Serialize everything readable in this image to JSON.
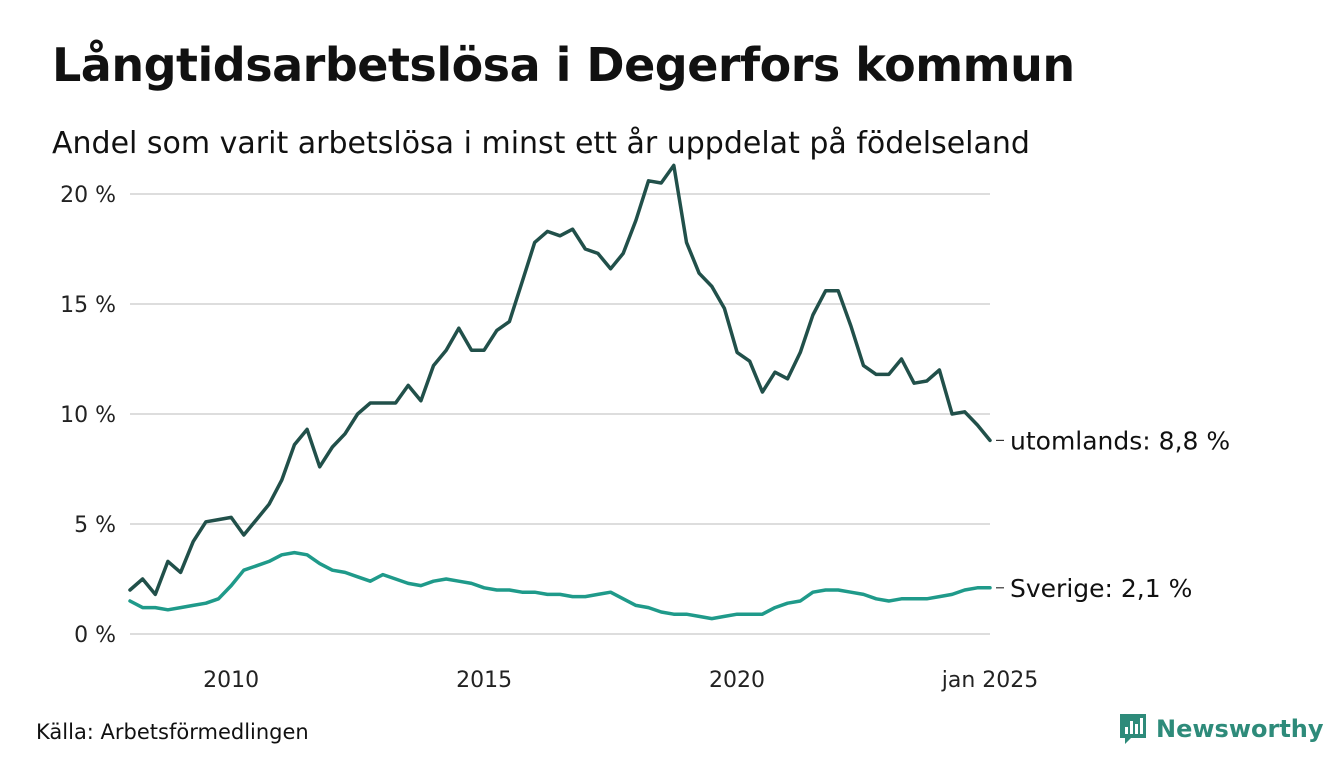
{
  "title": "Långtidsarbetslösa i Degerfors kommun",
  "subtitle": "Andel som varit arbetslösa i minst ett år uppdelat på födelseland",
  "source": "Källa: Arbetsförmedlingen",
  "brand": "Newsworthy",
  "colors": {
    "utomlands": "#21504a",
    "sverige": "#1f9a8a",
    "grid": "#dddddd",
    "brand": "#2e8b7a"
  },
  "chart_data": {
    "type": "line",
    "title": "Långtidsarbetslösa i Degerfors kommun",
    "subtitle": "Andel som varit arbetslösa i minst ett år uppdelat på födelseland",
    "xlabel": "",
    "ylabel": "",
    "xlim": [
      "2008-01",
      "2025-01"
    ],
    "ylim": [
      0,
      22
    ],
    "y_ticks": [
      0,
      5,
      10,
      15,
      20
    ],
    "y_tick_labels": [
      "0 %",
      "5 %",
      "10 %",
      "15 %",
      "20 %"
    ],
    "x_ticks": [
      "2010-01",
      "2015-01",
      "2020-01",
      "2025-01"
    ],
    "x_tick_labels": [
      "2010",
      "2015",
      "2020",
      "jan 2025"
    ],
    "grid": true,
    "series": [
      {
        "name": "utomlands",
        "end_label": "utomlands: 8,8 %",
        "points": [
          [
            "2008-01",
            2.0
          ],
          [
            "2008-04",
            2.5
          ],
          [
            "2008-07",
            1.8
          ],
          [
            "2008-10",
            3.3
          ],
          [
            "2009-01",
            2.8
          ],
          [
            "2009-04",
            4.2
          ],
          [
            "2009-07",
            5.1
          ],
          [
            "2009-10",
            5.2
          ],
          [
            "2010-01",
            5.3
          ],
          [
            "2010-04",
            4.5
          ],
          [
            "2010-07",
            5.2
          ],
          [
            "2010-10",
            5.9
          ],
          [
            "2011-01",
            7.0
          ],
          [
            "2011-04",
            8.6
          ],
          [
            "2011-07",
            9.3
          ],
          [
            "2011-10",
            7.6
          ],
          [
            "2012-01",
            8.5
          ],
          [
            "2012-04",
            9.1
          ],
          [
            "2012-07",
            10.0
          ],
          [
            "2012-10",
            10.5
          ],
          [
            "2013-01",
            10.5
          ],
          [
            "2013-04",
            10.5
          ],
          [
            "2013-07",
            11.3
          ],
          [
            "2013-10",
            10.6
          ],
          [
            "2014-01",
            12.2
          ],
          [
            "2014-04",
            12.9
          ],
          [
            "2014-07",
            13.9
          ],
          [
            "2014-10",
            12.9
          ],
          [
            "2015-01",
            12.9
          ],
          [
            "2015-04",
            13.8
          ],
          [
            "2015-07",
            14.2
          ],
          [
            "2015-10",
            16.0
          ],
          [
            "2016-01",
            17.8
          ],
          [
            "2016-04",
            18.3
          ],
          [
            "2016-07",
            18.1
          ],
          [
            "2016-10",
            18.4
          ],
          [
            "2017-01",
            17.5
          ],
          [
            "2017-04",
            17.3
          ],
          [
            "2017-07",
            16.6
          ],
          [
            "2017-10",
            17.3
          ],
          [
            "2018-01",
            18.8
          ],
          [
            "2018-04",
            20.6
          ],
          [
            "2018-07",
            20.5
          ],
          [
            "2018-10",
            21.3
          ],
          [
            "2019-01",
            17.8
          ],
          [
            "2019-04",
            16.4
          ],
          [
            "2019-07",
            15.8
          ],
          [
            "2019-10",
            14.8
          ],
          [
            "2020-01",
            12.8
          ],
          [
            "2020-04",
            12.4
          ],
          [
            "2020-07",
            11.0
          ],
          [
            "2020-10",
            11.9
          ],
          [
            "2021-01",
            11.6
          ],
          [
            "2021-04",
            12.8
          ],
          [
            "2021-07",
            14.5
          ],
          [
            "2021-10",
            15.6
          ],
          [
            "2022-01",
            15.6
          ],
          [
            "2022-04",
            14.0
          ],
          [
            "2022-07",
            12.2
          ],
          [
            "2022-10",
            11.8
          ],
          [
            "2023-01",
            11.8
          ],
          [
            "2023-04",
            12.5
          ],
          [
            "2023-07",
            11.4
          ],
          [
            "2023-10",
            11.5
          ],
          [
            "2024-01",
            12.0
          ],
          [
            "2024-04",
            10.0
          ],
          [
            "2024-07",
            10.1
          ],
          [
            "2024-10",
            9.5
          ],
          [
            "2025-01",
            8.8
          ]
        ]
      },
      {
        "name": "Sverige",
        "end_label": "Sverige: 2,1 %",
        "points": [
          [
            "2008-01",
            1.5
          ],
          [
            "2008-04",
            1.2
          ],
          [
            "2008-07",
            1.2
          ],
          [
            "2008-10",
            1.1
          ],
          [
            "2009-01",
            1.2
          ],
          [
            "2009-04",
            1.3
          ],
          [
            "2009-07",
            1.4
          ],
          [
            "2009-10",
            1.6
          ],
          [
            "2010-01",
            2.2
          ],
          [
            "2010-04",
            2.9
          ],
          [
            "2010-07",
            3.1
          ],
          [
            "2010-10",
            3.3
          ],
          [
            "2011-01",
            3.6
          ],
          [
            "2011-04",
            3.7
          ],
          [
            "2011-07",
            3.6
          ],
          [
            "2011-10",
            3.2
          ],
          [
            "2012-01",
            2.9
          ],
          [
            "2012-04",
            2.8
          ],
          [
            "2012-07",
            2.6
          ],
          [
            "2012-10",
            2.4
          ],
          [
            "2013-01",
            2.7
          ],
          [
            "2013-04",
            2.5
          ],
          [
            "2013-07",
            2.3
          ],
          [
            "2013-10",
            2.2
          ],
          [
            "2014-01",
            2.4
          ],
          [
            "2014-04",
            2.5
          ],
          [
            "2014-07",
            2.4
          ],
          [
            "2014-10",
            2.3
          ],
          [
            "2015-01",
            2.1
          ],
          [
            "2015-04",
            2.0
          ],
          [
            "2015-07",
            2.0
          ],
          [
            "2015-10",
            1.9
          ],
          [
            "2016-01",
            1.9
          ],
          [
            "2016-04",
            1.8
          ],
          [
            "2016-07",
            1.8
          ],
          [
            "2016-10",
            1.7
          ],
          [
            "2017-01",
            1.7
          ],
          [
            "2017-04",
            1.8
          ],
          [
            "2017-07",
            1.9
          ],
          [
            "2017-10",
            1.6
          ],
          [
            "2018-01",
            1.3
          ],
          [
            "2018-04",
            1.2
          ],
          [
            "2018-07",
            1.0
          ],
          [
            "2018-10",
            0.9
          ],
          [
            "2019-01",
            0.9
          ],
          [
            "2019-04",
            0.8
          ],
          [
            "2019-07",
            0.7
          ],
          [
            "2019-10",
            0.8
          ],
          [
            "2020-01",
            0.9
          ],
          [
            "2020-04",
            0.9
          ],
          [
            "2020-07",
            0.9
          ],
          [
            "2020-10",
            1.2
          ],
          [
            "2021-01",
            1.4
          ],
          [
            "2021-04",
            1.5
          ],
          [
            "2021-07",
            1.9
          ],
          [
            "2021-10",
            2.0
          ],
          [
            "2022-01",
            2.0
          ],
          [
            "2022-04",
            1.9
          ],
          [
            "2022-07",
            1.8
          ],
          [
            "2022-10",
            1.6
          ],
          [
            "2023-01",
            1.5
          ],
          [
            "2023-04",
            1.6
          ],
          [
            "2023-07",
            1.6
          ],
          [
            "2023-10",
            1.6
          ],
          [
            "2024-01",
            1.7
          ],
          [
            "2024-04",
            1.8
          ],
          [
            "2024-07",
            2.0
          ],
          [
            "2024-10",
            2.1
          ],
          [
            "2025-01",
            2.1
          ]
        ]
      }
    ]
  }
}
